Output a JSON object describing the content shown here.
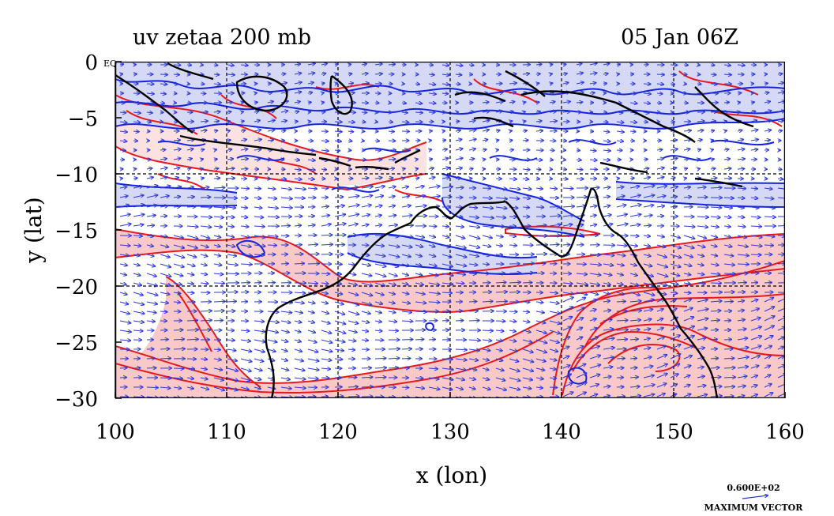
{
  "title_left": "uv zetaa 200 mb",
  "title_right": "05 Jan 06Z",
  "equator_label": "EQ",
  "xlabel": "x (lon)",
  "ylabel": "y (lat)",
  "x_ticks": [
    "100",
    "110",
    "120",
    "130",
    "140",
    "150",
    "160"
  ],
  "y_ticks": [
    "0",
    "−5",
    "−10",
    "−15",
    "−20",
    "−25",
    "−30"
  ],
  "legend": {
    "value": "0.600E+02",
    "label": "MAXIMUM VECTOR"
  },
  "map": {
    "lon_range": [
      100,
      160
    ],
    "lat_range": [
      -30,
      0
    ],
    "grid_lon": [
      110,
      120,
      130,
      140,
      150
    ],
    "grid_lat": [
      -10,
      -20
    ],
    "colors": {
      "positive_contour": "#e8191e",
      "positive_fill": "#f9c8c8",
      "negative_contour": "#1424e0",
      "negative_fill": "#d6d9f6",
      "vector": "#2b3ad8",
      "coast": "#000000"
    }
  }
}
